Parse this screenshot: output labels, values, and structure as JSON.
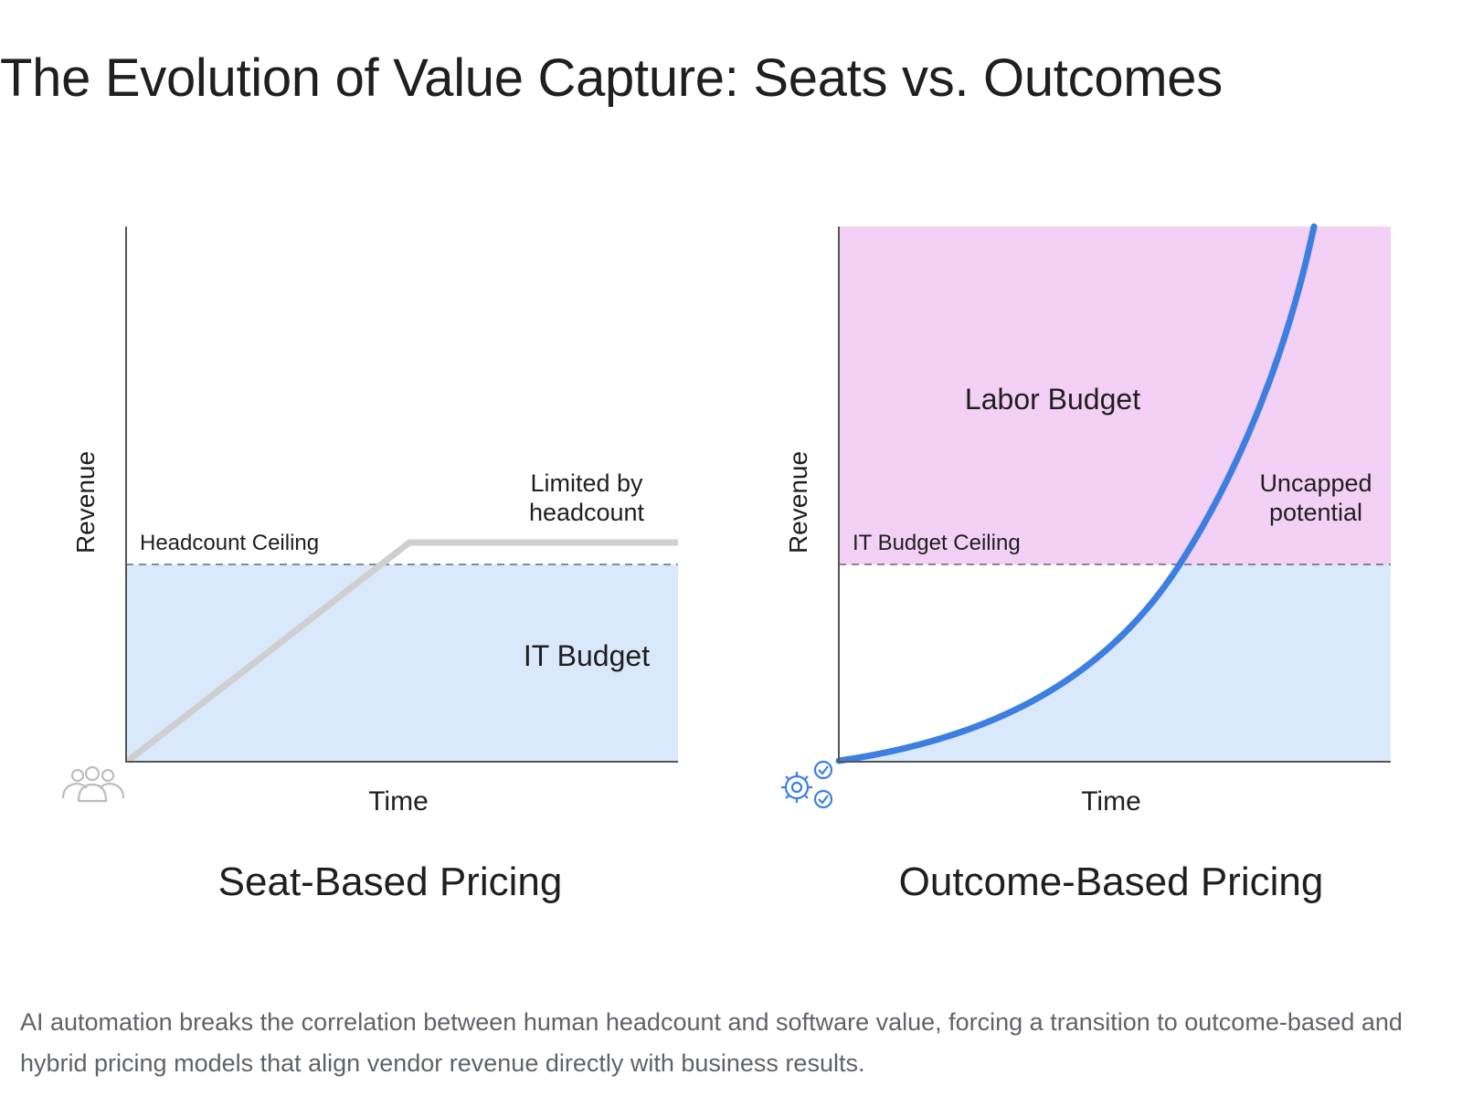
{
  "title": "The Evolution of Value Capture: Seats vs. Outcomes",
  "colors": {
    "it_budget_fill": "#dae8fb",
    "labor_budget_fill": "#f3d0f5",
    "seat_line": "#cfcfcf",
    "outcome_curve": "#3c7fe0",
    "axis": "#555555",
    "ceiling_dash": "#666666",
    "people_icon": "#bdbdbd",
    "gear_icon": "#3c7fe0"
  },
  "left_chart": {
    "heading": "Seat-Based Pricing",
    "y_axis_label": "Revenue",
    "x_axis_label": "Time",
    "ceiling_label": "Headcount Ceiling",
    "annotation": [
      "Limited by",
      "headcount"
    ],
    "region_label": "IT Budget",
    "icon": "people-group-icon"
  },
  "right_chart": {
    "heading": "Outcome-Based Pricing",
    "y_axis_label": "Revenue",
    "x_axis_label": "Time",
    "ceiling_label": "IT Budget Ceiling",
    "annotation": [
      "Uncapped",
      "potential"
    ],
    "upper_region_label": "Labor Budget",
    "icon": "gear-check-icon"
  },
  "caption": "AI automation breaks the correlation between human headcount and software value, forcing a transition to outcome-based and hybrid pricing models that align vendor revenue directly with business results."
}
